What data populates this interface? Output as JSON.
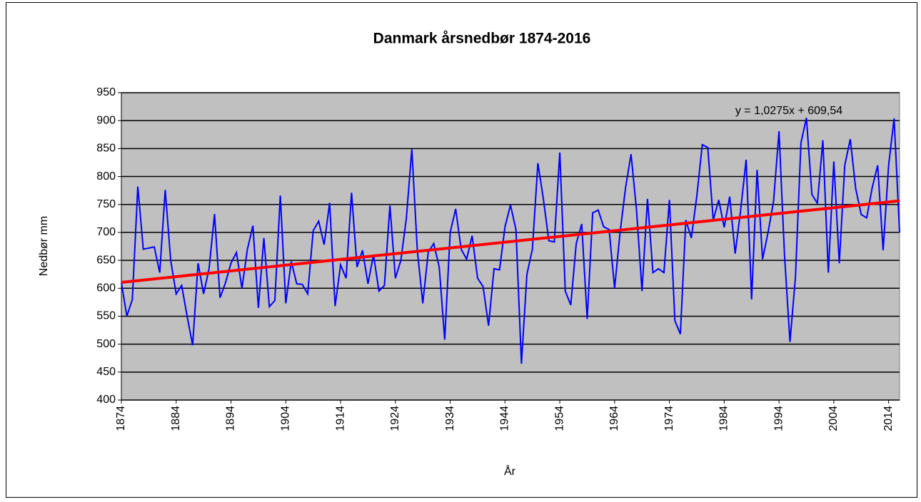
{
  "chart_data": {
    "type": "line",
    "title": "Danmark årsnedbør 1874-2016",
    "x_label": "År",
    "y_label": "Nedbør mm",
    "x": [
      1874,
      1875,
      1876,
      1877,
      1878,
      1879,
      1880,
      1881,
      1882,
      1883,
      1884,
      1885,
      1886,
      1887,
      1888,
      1889,
      1890,
      1891,
      1892,
      1893,
      1894,
      1895,
      1896,
      1897,
      1898,
      1899,
      1900,
      1901,
      1902,
      1903,
      1904,
      1905,
      1906,
      1907,
      1908,
      1909,
      1910,
      1911,
      1912,
      1913,
      1914,
      1915,
      1916,
      1917,
      1918,
      1919,
      1920,
      1921,
      1922,
      1923,
      1924,
      1925,
      1926,
      1927,
      1928,
      1929,
      1930,
      1931,
      1932,
      1933,
      1934,
      1935,
      1936,
      1937,
      1938,
      1939,
      1940,
      1941,
      1942,
      1943,
      1944,
      1945,
      1946,
      1947,
      1948,
      1949,
      1950,
      1951,
      1952,
      1953,
      1954,
      1955,
      1956,
      1957,
      1958,
      1959,
      1960,
      1961,
      1962,
      1963,
      1964,
      1965,
      1966,
      1967,
      1968,
      1969,
      1970,
      1971,
      1972,
      1973,
      1974,
      1975,
      1976,
      1977,
      1978,
      1979,
      1980,
      1981,
      1982,
      1983,
      1984,
      1985,
      1986,
      1987,
      1988,
      1989,
      1990,
      1991,
      1992,
      1993,
      1994,
      1995,
      1996,
      1997,
      1998,
      1999,
      2000,
      2001,
      2002,
      2003,
      2004,
      2005,
      2006,
      2007,
      2008,
      2009,
      2010,
      2011,
      2012,
      2013,
      2014,
      2015,
      2016
    ],
    "series": [
      {
        "color": "#0000ff",
        "values": [
          610,
          550,
          580,
          782,
          670,
          672,
          674,
          628,
          776,
          650,
          590,
          605,
          550,
          498,
          645,
          590,
          635,
          733,
          583,
          610,
          645,
          664,
          600,
          670,
          712,
          565,
          690,
          567,
          578,
          766,
          573,
          648,
          608,
          607,
          590,
          703,
          720,
          678,
          753,
          568,
          642,
          618,
          771,
          638,
          668,
          608,
          660,
          595,
          605,
          748,
          618,
          650,
          725,
          849,
          668,
          573,
          665,
          680,
          638,
          508,
          700,
          742,
          670,
          652,
          694,
          618,
          603,
          533,
          635,
          633,
          710,
          749,
          705,
          465,
          625,
          670,
          824,
          760,
          685,
          683,
          843,
          595,
          570,
          680,
          715,
          545,
          735,
          740,
          710,
          705,
          600,
          700,
          780,
          840,
          740,
          595,
          760,
          628,
          635,
          628,
          758,
          542,
          518,
          722,
          690,
          765,
          857,
          852,
          722,
          758,
          709,
          764,
          662,
          740,
          830,
          580,
          812,
          652,
          700,
          755,
          881,
          660,
          504,
          620,
          860,
          905,
          768,
          752,
          865,
          628,
          827,
          645,
          820,
          867,
          778,
          732,
          726,
          780,
          820,
          668,
          820,
          904,
          700
        ]
      }
    ],
    "trendline": {
      "label": "y = 1,0275x + 609,54",
      "slope": 1.0275,
      "intercept": 609.54,
      "color": "#ff0000"
    },
    "xlim": [
      1874,
      2016
    ],
    "xticks": [
      1874,
      1884,
      1894,
      1904,
      1914,
      1924,
      1934,
      1944,
      1954,
      1964,
      1974,
      1984,
      1994,
      2004,
      2014
    ],
    "ylim": [
      400,
      950
    ],
    "yticks": [
      400,
      450,
      500,
      550,
      600,
      650,
      700,
      750,
      800,
      850,
      900,
      950
    ],
    "grid": true,
    "plot_background": "#c0c0c0"
  }
}
